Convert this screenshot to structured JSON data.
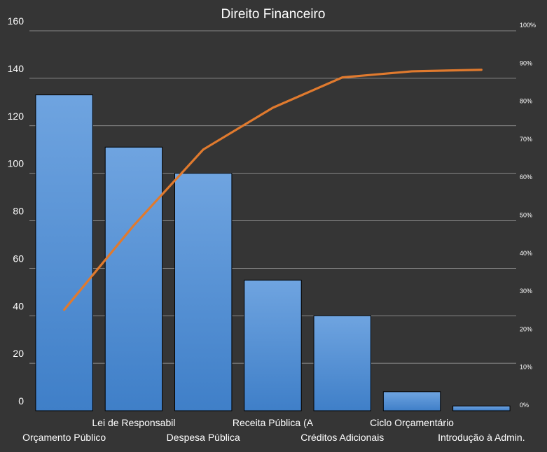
{
  "chart_data": {
    "type": "bar",
    "title": "Direito Financeiro",
    "categories": [
      "Orçamento Público",
      "Lei de Responsabil",
      "Despesa Pública",
      "Receita Pública (A",
      "Créditos Adicionais",
      "Ciclo Orçamentário",
      "Introdução  à Admin."
    ],
    "series": [
      {
        "type": "bar",
        "values": [
          133,
          111,
          100,
          55,
          40,
          8,
          2
        ]
      },
      {
        "type": "line",
        "axis": "secondary",
        "values": [
          0.2658,
          0.4877,
          0.6875,
          0.7974,
          0.8773,
          0.8933,
          0.8973
        ]
      }
    ],
    "y_ticks": [
      "0",
      "20",
      "40",
      "60",
      "80",
      "100",
      "120",
      "140",
      "160"
    ],
    "y2_ticks": [
      "0%",
      "10%",
      "20%",
      "30%",
      "40%",
      "50%",
      "60%",
      "70%",
      "80%",
      "90%",
      "100%"
    ],
    "ylim": [
      0,
      160
    ],
    "y2lim": [
      0,
      1
    ],
    "grid": true,
    "colors": {
      "background": "#353535",
      "bar_light": "#6fa4e0",
      "bar_dark": "#3f7fc8",
      "bar_border": "#000000",
      "line": "#e07a2e",
      "text": "#ffffff",
      "grid": "#ffffff"
    }
  }
}
